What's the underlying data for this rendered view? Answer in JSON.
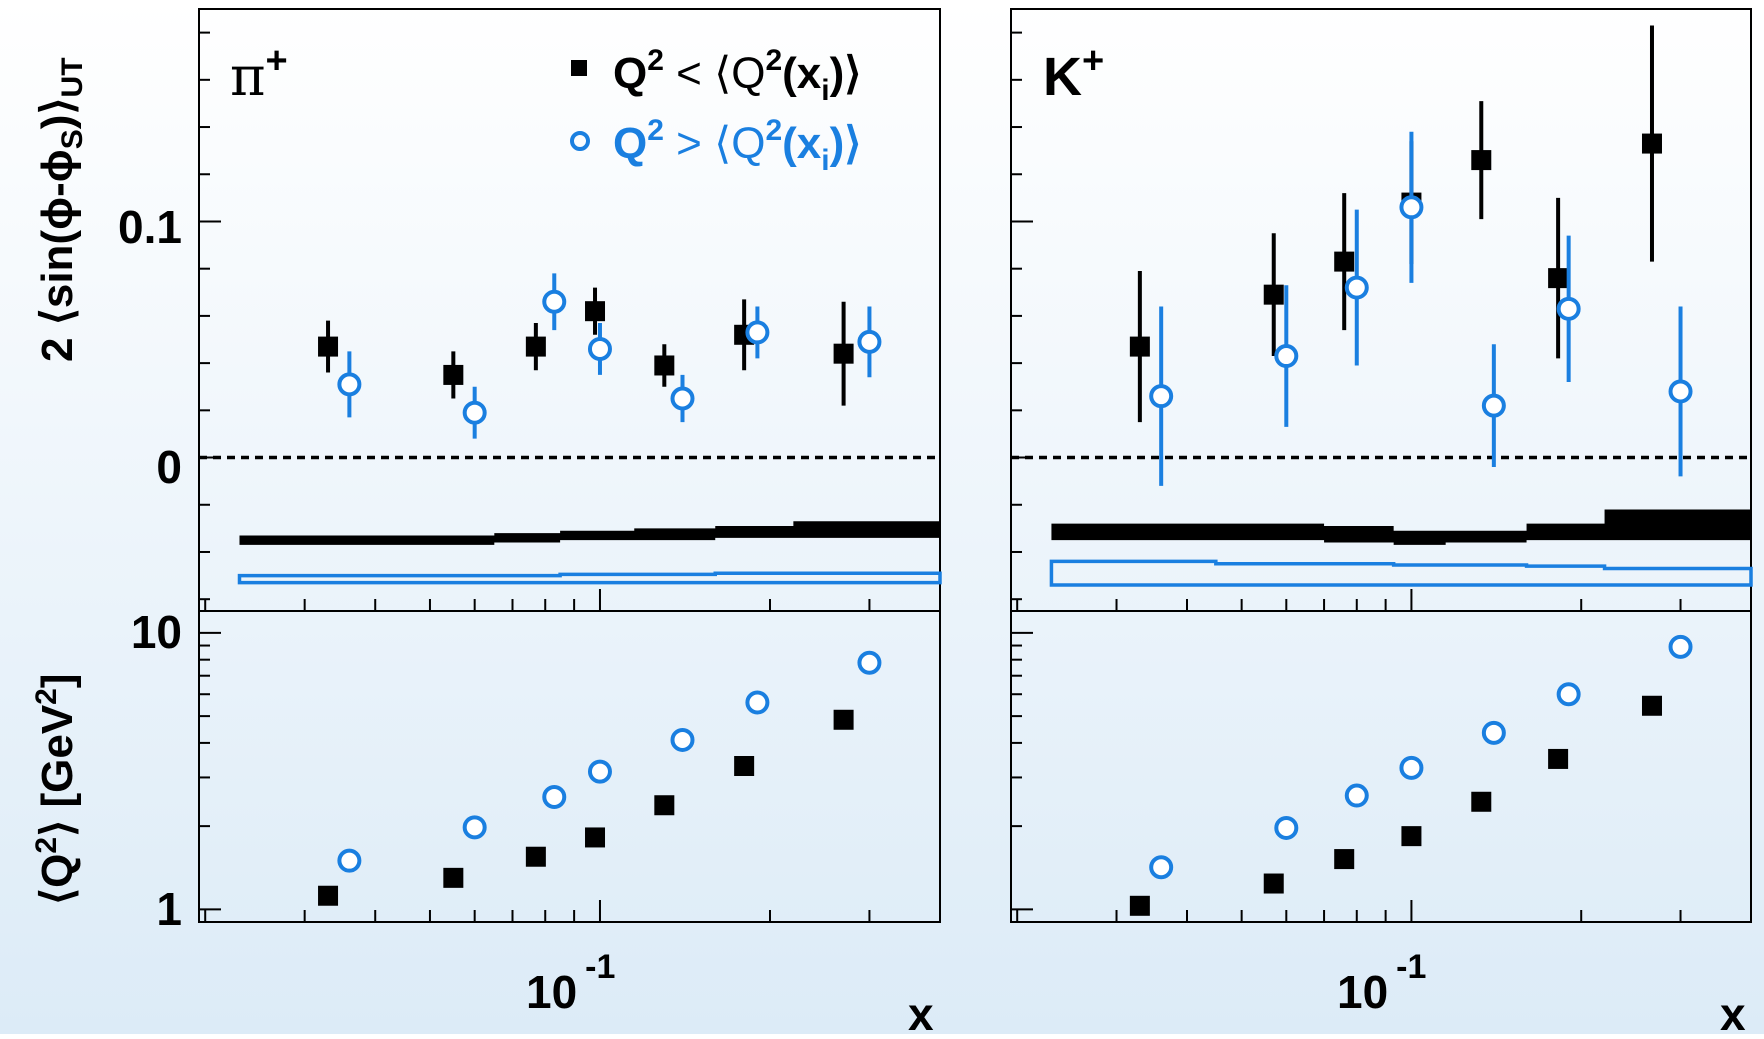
{
  "colors": {
    "series_low": "#000000",
    "series_high": "#1a7fe0"
  },
  "y_axis_top": {
    "label_main": "2 ⟨sin(ϕ-ϕ",
    "label_sub1": "S",
    "label_mid": ")⟩",
    "label_sub2": "UT",
    "ticks": [
      "0.1",
      "0"
    ]
  },
  "y_axis_bottom": {
    "label_a": "⟨Q",
    "label_sup": "2",
    "label_b": "⟩ [GeV",
    "label_sup2": "2",
    "label_c": "]",
    "ticks": [
      "10",
      "1"
    ]
  },
  "x_axis": {
    "label": "x",
    "tick_base": "10",
    "tick_exp": "-1"
  },
  "panels": [
    {
      "id": "pi",
      "title_base": "π",
      "title_sup": "+"
    },
    {
      "id": "k",
      "title_base": "K",
      "title_sup": "+"
    }
  ],
  "legend": [
    {
      "pre": "Q",
      "sup": "2",
      "rel": " < ⟨Q",
      "sup2": "2",
      "mid": "(x",
      "sub": "i",
      "post": ")⟩"
    },
    {
      "pre": "Q",
      "sup": "2",
      "rel": " > ⟨Q",
      "sup2": "2",
      "mid": "(x",
      "sub": "i",
      "post": ")⟩"
    }
  ],
  "chart_data": [
    {
      "type": "scatter",
      "panel": "π+ asymmetry",
      "x_scale": "log",
      "ylim": [
        -0.065,
        0.19
      ],
      "series": [
        {
          "name": "Q² < ⟨Q²(xi)⟩",
          "marker": "filled-square",
          "x": [
            0.033,
            0.055,
            0.077,
            0.098,
            0.13,
            0.18,
            0.27
          ],
          "y": [
            0.047,
            0.035,
            0.047,
            0.062,
            0.039,
            0.052,
            0.044
          ],
          "err": [
            0.011,
            0.01,
            0.01,
            0.01,
            0.009,
            0.015,
            0.022
          ]
        },
        {
          "name": "Q² > ⟨Q²(xi)⟩",
          "marker": "open-circle",
          "x": [
            0.036,
            0.06,
            0.083,
            0.1,
            0.14,
            0.19,
            0.3
          ],
          "y": [
            0.031,
            0.019,
            0.066,
            0.046,
            0.025,
            0.053,
            0.049
          ],
          "err": [
            0.014,
            0.011,
            0.012,
            0.011,
            0.01,
            0.011,
            0.015
          ]
        }
      ],
      "systematic_band": {
        "x_edges": [
          0.023,
          0.045,
          0.065,
          0.085,
          0.115,
          0.16,
          0.22,
          0.4
        ],
        "low_series": [
          [
            -0.037,
            -0.033
          ],
          [
            -0.037,
            -0.033
          ],
          [
            -0.036,
            -0.032
          ],
          [
            -0.035,
            -0.031
          ],
          [
            -0.035,
            -0.03
          ],
          [
            -0.034,
            -0.029
          ],
          [
            -0.034,
            -0.027
          ]
        ],
        "high_series": [
          [
            -0.053,
            -0.05
          ],
          [
            -0.053,
            -0.05
          ],
          [
            -0.053,
            -0.05
          ],
          [
            -0.053,
            -0.0495
          ],
          [
            -0.053,
            -0.0495
          ],
          [
            -0.053,
            -0.049
          ],
          [
            -0.053,
            -0.049
          ]
        ]
      }
    },
    {
      "type": "scatter",
      "panel": "K+ asymmetry",
      "x_scale": "log",
      "ylim": [
        -0.065,
        0.19
      ],
      "series": [
        {
          "name": "Q² < ⟨Q²(xi)⟩",
          "marker": "filled-square",
          "x": [
            0.033,
            0.057,
            0.076,
            0.1,
            0.133,
            0.182,
            0.267
          ],
          "y": [
            0.047,
            0.069,
            0.083,
            0.108,
            0.126,
            0.076,
            0.133
          ],
          "err": [
            0.032,
            0.026,
            0.029,
            0.026,
            0.025,
            0.034,
            0.05
          ]
        },
        {
          "name": "Q² > ⟨Q²(xi)⟩",
          "marker": "open-circle",
          "x": [
            0.036,
            0.06,
            0.08,
            0.1,
            0.14,
            0.19,
            0.3
          ],
          "y": [
            0.026,
            0.043,
            0.072,
            0.106,
            0.022,
            0.063,
            0.028
          ],
          "err": [
            0.038,
            0.03,
            0.033,
            0.032,
            0.026,
            0.031,
            0.036
          ]
        }
      ],
      "systematic_band": {
        "x_edges": [
          0.023,
          0.045,
          0.07,
          0.093,
          0.115,
          0.16,
          0.22,
          0.4
        ],
        "low_series": [
          [
            -0.035,
            -0.028
          ],
          [
            -0.035,
            -0.028
          ],
          [
            -0.036,
            -0.029
          ],
          [
            -0.037,
            -0.031
          ],
          [
            -0.036,
            -0.031
          ],
          [
            -0.035,
            -0.028
          ],
          [
            -0.035,
            -0.022
          ]
        ],
        "high_series": [
          [
            -0.054,
            -0.044
          ],
          [
            -0.054,
            -0.045
          ],
          [
            -0.054,
            -0.045
          ],
          [
            -0.054,
            -0.0455
          ],
          [
            -0.054,
            -0.0455
          ],
          [
            -0.054,
            -0.046
          ],
          [
            -0.054,
            -0.047
          ]
        ]
      }
    },
    {
      "type": "scatter",
      "panel": "π+ ⟨Q²⟩",
      "x_scale": "log",
      "y_scale": "log",
      "ylim": [
        0.9,
        12
      ],
      "series": [
        {
          "name": "Q² < ⟨Q²(xi)⟩",
          "marker": "filled-square",
          "x": [
            0.033,
            0.055,
            0.077,
            0.098,
            0.13,
            0.18,
            0.27
          ],
          "y": [
            1.12,
            1.3,
            1.55,
            1.82,
            2.38,
            3.3,
            4.85
          ]
        },
        {
          "name": "Q² > ⟨Q²(xi)⟩",
          "marker": "open-circle",
          "x": [
            0.036,
            0.06,
            0.083,
            0.1,
            0.14,
            0.19,
            0.3
          ],
          "y": [
            1.5,
            1.98,
            2.55,
            3.15,
            4.1,
            5.6,
            7.8
          ]
        }
      ]
    },
    {
      "type": "scatter",
      "panel": "K+ ⟨Q²⟩",
      "x_scale": "log",
      "y_scale": "log",
      "ylim": [
        0.9,
        12
      ],
      "series": [
        {
          "name": "Q² < ⟨Q²(xi)⟩",
          "marker": "filled-square",
          "x": [
            0.033,
            0.057,
            0.076,
            0.1,
            0.133,
            0.182,
            0.267
          ],
          "y": [
            1.03,
            1.24,
            1.52,
            1.84,
            2.45,
            3.5,
            5.45
          ]
        },
        {
          "name": "Q² > ⟨Q²(xi)⟩",
          "marker": "open-circle",
          "x": [
            0.036,
            0.06,
            0.08,
            0.1,
            0.14,
            0.19,
            0.3
          ],
          "y": [
            1.42,
            1.97,
            2.58,
            3.25,
            4.35,
            6.0,
            8.9
          ]
        }
      ]
    }
  ]
}
